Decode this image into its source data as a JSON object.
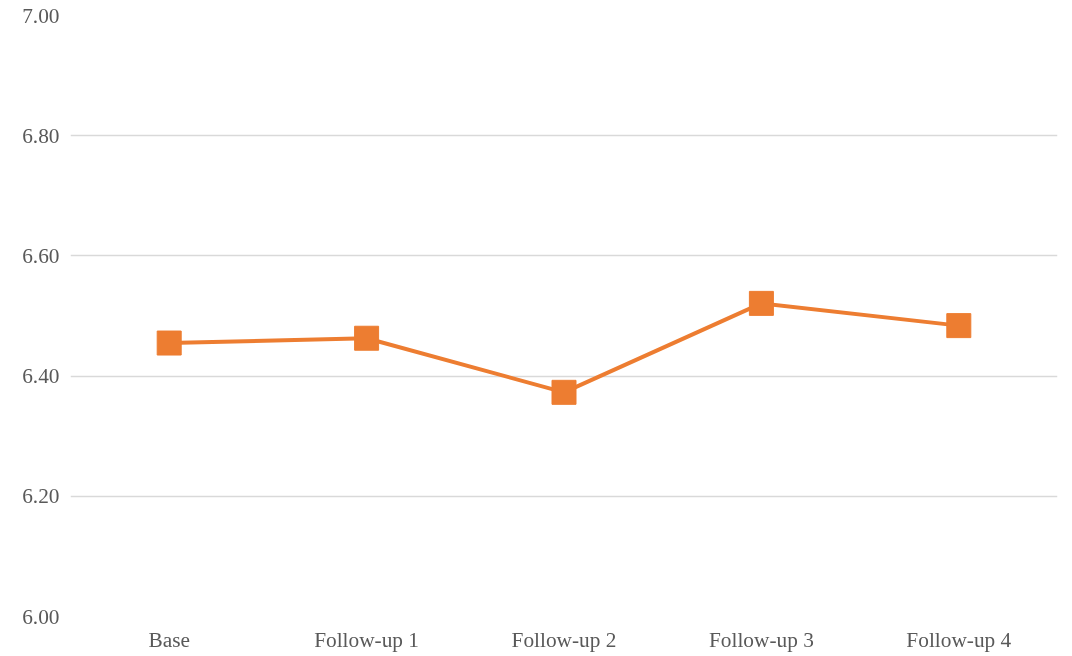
{
  "chart_data": {
    "type": "line",
    "categories": [
      "Base",
      "Follow-up 1",
      "Follow-up 2",
      "Follow-up 3",
      "Follow-up 4"
    ],
    "series": [
      {
        "color": "#ed7d31",
        "values": [
          6.455,
          6.463,
          6.373,
          6.521,
          6.484
        ]
      }
    ],
    "ylim": [
      6.0,
      7.0
    ],
    "yticks": [
      {
        "value": 6.0,
        "label": "6.00"
      },
      {
        "value": 6.2,
        "label": "6.20"
      },
      {
        "value": 6.4,
        "label": "6.40"
      },
      {
        "value": 6.6,
        "label": "6.60"
      },
      {
        "value": 6.8,
        "label": "6.80"
      },
      {
        "value": 7.0,
        "label": "7.00"
      }
    ],
    "grid": "y",
    "marker": "square",
    "line_style": "solid"
  }
}
